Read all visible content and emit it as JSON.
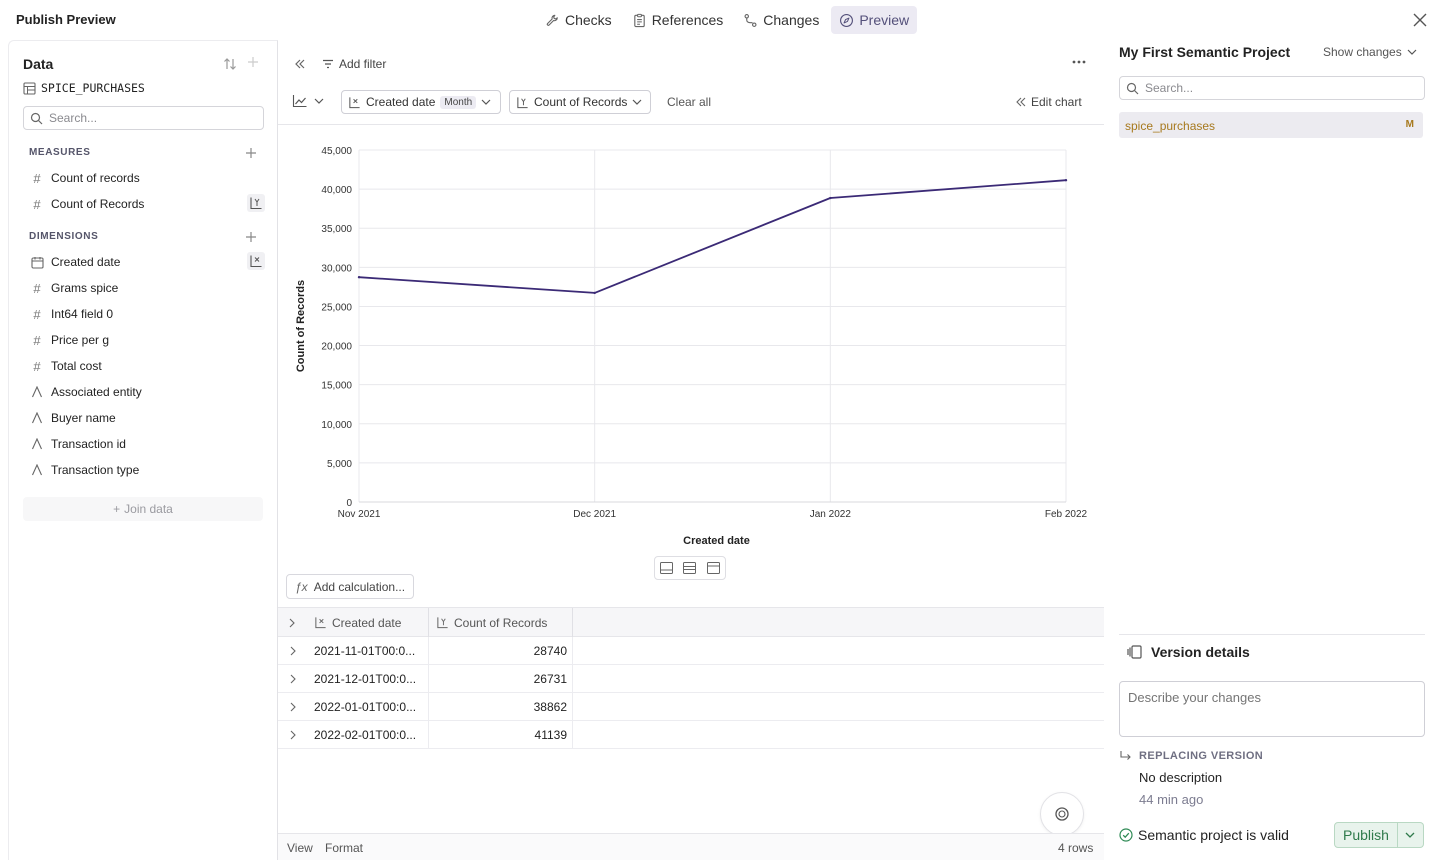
{
  "app": {
    "title": "Publish Preview"
  },
  "tabs": [
    {
      "label": "Checks",
      "icon": "wrench-icon"
    },
    {
      "label": "References",
      "icon": "clipboard-icon"
    },
    {
      "label": "Changes",
      "icon": "git-branch-icon"
    },
    {
      "label": "Preview",
      "icon": "compass-icon",
      "active": true
    }
  ],
  "left": {
    "title": "Data",
    "dataset": "SPICE_PURCHASES",
    "search_placeholder": "Search...",
    "measures_header": "MEASURES",
    "measures": [
      {
        "label": "Count of records",
        "icon": "hash-icon"
      },
      {
        "label": "Count of Records",
        "icon": "hash-icon",
        "badge": "y-axis-icon"
      }
    ],
    "dimensions_header": "DIMENSIONS",
    "dimensions": [
      {
        "label": "Created date",
        "icon": "calendar-icon",
        "badge": "x-axis-icon"
      },
      {
        "label": "Grams spice",
        "icon": "hash-icon"
      },
      {
        "label": "Int64 field 0",
        "icon": "hash-icon"
      },
      {
        "label": "Price per g",
        "icon": "hash-icon"
      },
      {
        "label": "Total cost",
        "icon": "hash-icon"
      },
      {
        "label": "Associated entity",
        "icon": "text-icon"
      },
      {
        "label": "Buyer name",
        "icon": "text-icon"
      },
      {
        "label": "Transaction id",
        "icon": "text-icon"
      },
      {
        "label": "Transaction type",
        "icon": "text-icon"
      }
    ],
    "join_label": "Join data"
  },
  "toolbar": {
    "add_filter": "Add filter",
    "x_pill": "Created date",
    "x_pill_grain": "Month",
    "y_pill": "Count of Records",
    "clear_all": "Clear all",
    "edit_chart": "Edit chart"
  },
  "chart_data": {
    "type": "line",
    "categories": [
      "Nov 2021",
      "Dec 2021",
      "Jan 2022",
      "Feb 2022"
    ],
    "series": [
      {
        "values": [
          28740,
          26731,
          38862,
          41139
        ],
        "color": "#3b2a76"
      }
    ],
    "xlabel": "Created date",
    "ylabel": "Count of Records",
    "ylim": [
      0,
      45000
    ],
    "yticks": [
      "0",
      "5,000",
      "10,000",
      "15,000",
      "20,000",
      "25,000",
      "30,000",
      "35,000",
      "40,000",
      "45,000"
    ],
    "grid": true
  },
  "table": {
    "add_calc": "Add calculation...",
    "columns": [
      "Created date",
      "Count of Records"
    ],
    "rows": [
      {
        "date": "2021-11-01T00:0...",
        "count": "28740"
      },
      {
        "date": "2021-12-01T00:0...",
        "count": "26731"
      },
      {
        "date": "2022-01-01T00:0...",
        "count": "38862"
      },
      {
        "date": "2022-02-01T00:0...",
        "count": "41139"
      }
    ]
  },
  "footer": {
    "view": "View",
    "format": "Format",
    "rows": "4 rows"
  },
  "right": {
    "title": "My First Semantic Project",
    "show_changes": "Show changes",
    "search_placeholder": "Search...",
    "item_name": "spice_purchases",
    "item_marker": "M",
    "version_title": "Version details",
    "describe_placeholder": "Describe your changes",
    "replacing": "REPLACING VERSION",
    "no_desc": "No description",
    "ago": "44 min ago",
    "valid": "Semantic project is valid",
    "publish": "Publish"
  }
}
